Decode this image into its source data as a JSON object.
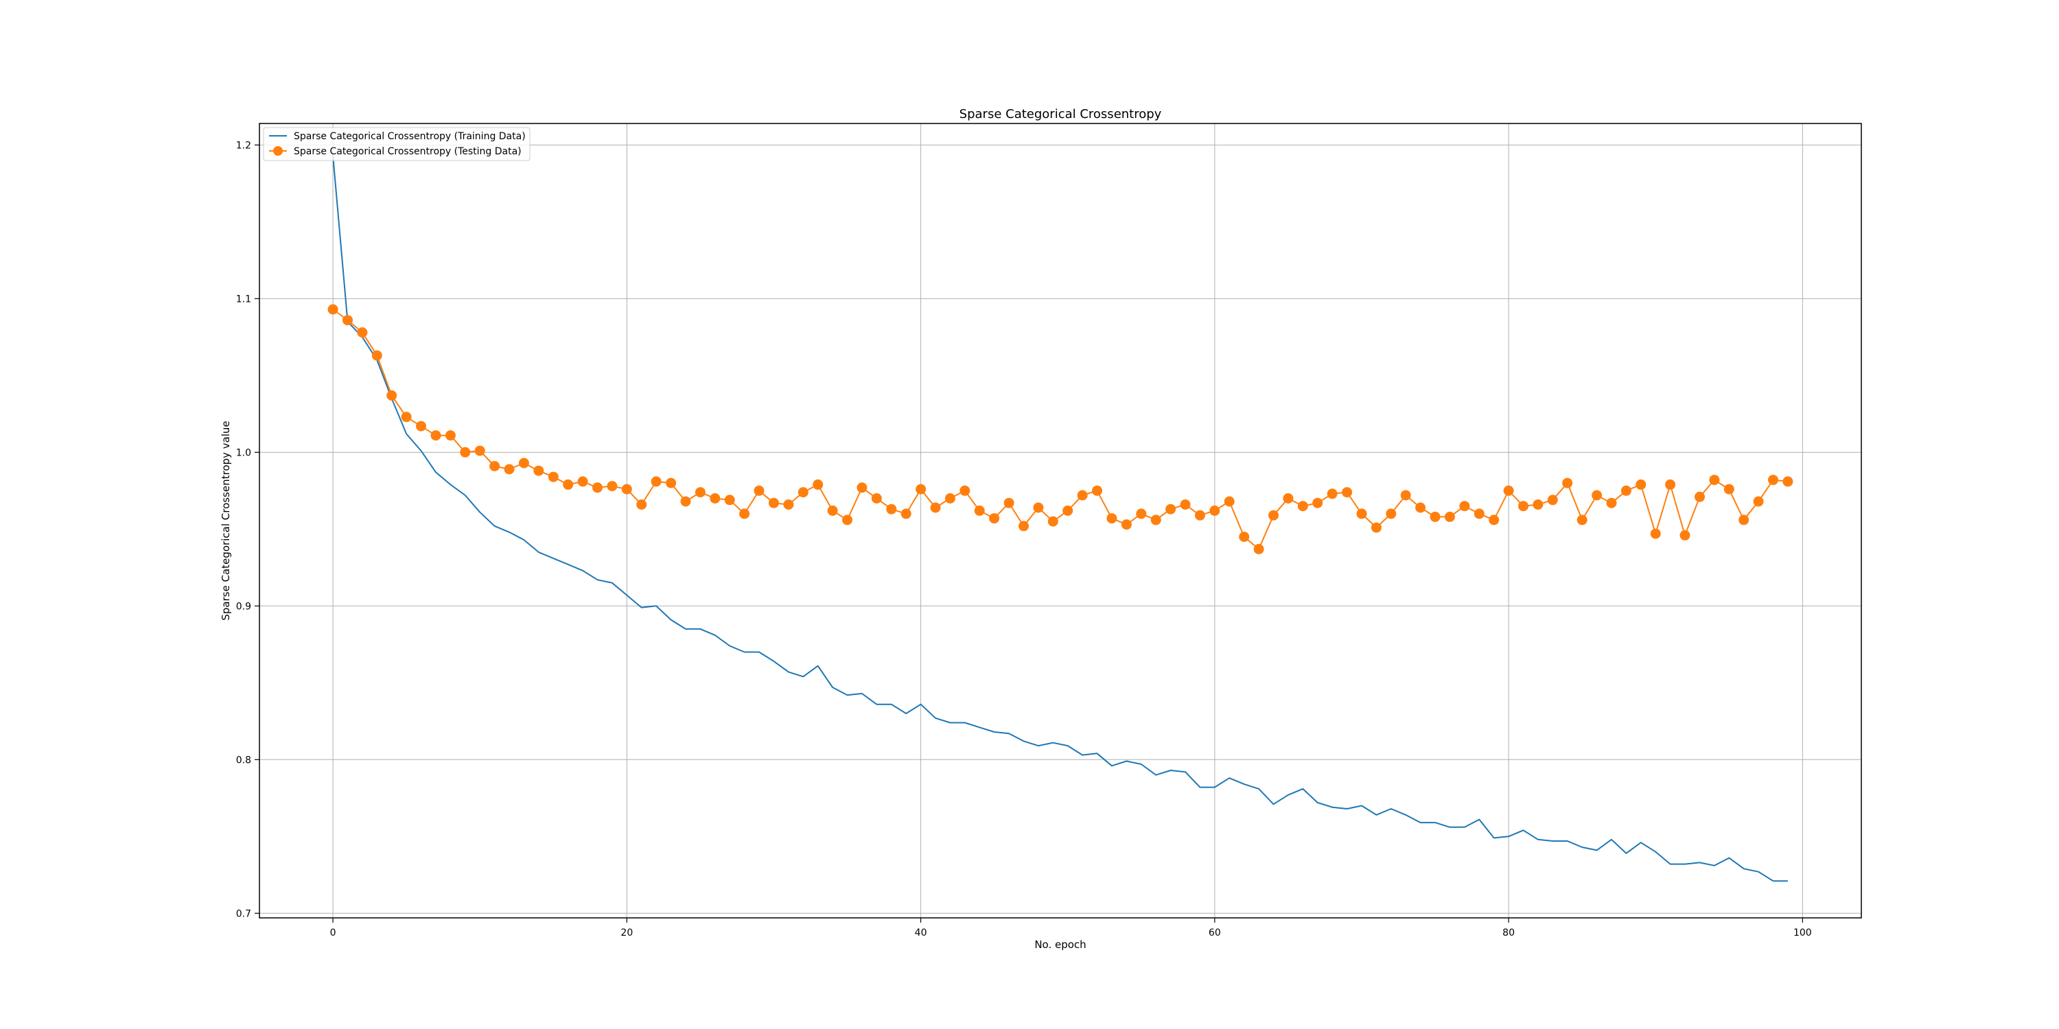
{
  "chart_data": {
    "type": "line",
    "title": "Sparse Categorical Crossentropy",
    "xlabel": "No. epoch",
    "ylabel": "Sparse Categorical Crossentropy value",
    "xlim": [
      -5,
      104
    ],
    "ylim": [
      0.697,
      1.214
    ],
    "grid": true,
    "legend_position": "upper left",
    "xticks": [
      0,
      20,
      40,
      60,
      80,
      100
    ],
    "yticks": [
      0.7,
      0.8,
      0.9,
      1.0,
      1.1,
      1.2
    ],
    "x": [
      0,
      1,
      2,
      3,
      4,
      5,
      6,
      7,
      8,
      9,
      10,
      11,
      12,
      13,
      14,
      15,
      16,
      17,
      18,
      19,
      20,
      21,
      22,
      23,
      24,
      25,
      26,
      27,
      28,
      29,
      30,
      31,
      32,
      33,
      34,
      35,
      36,
      37,
      38,
      39,
      40,
      41,
      42,
      43,
      44,
      45,
      46,
      47,
      48,
      49,
      50,
      51,
      52,
      53,
      54,
      55,
      56,
      57,
      58,
      59,
      60,
      61,
      62,
      63,
      64,
      65,
      66,
      67,
      68,
      69,
      70,
      71,
      72,
      73,
      74,
      75,
      76,
      77,
      78,
      79,
      80,
      81,
      82,
      83,
      84,
      85,
      86,
      87,
      88,
      89,
      90,
      91,
      92,
      93,
      94,
      95,
      96,
      97,
      98,
      99
    ],
    "series": [
      {
        "name": "Sparse Categorical Crossentropy (Training Data)",
        "color": "#1f77b4",
        "marker": "none",
        "values": [
          1.193,
          1.085,
          1.075,
          1.06,
          1.035,
          1.012,
          1.001,
          0.987,
          0.979,
          0.972,
          0.961,
          0.952,
          0.948,
          0.943,
          0.935,
          0.931,
          0.927,
          0.923,
          0.917,
          0.915,
          0.907,
          0.899,
          0.9,
          0.891,
          0.885,
          0.885,
          0.881,
          0.874,
          0.87,
          0.87,
          0.864,
          0.857,
          0.854,
          0.861,
          0.847,
          0.842,
          0.843,
          0.836,
          0.836,
          0.83,
          0.836,
          0.827,
          0.824,
          0.824,
          0.821,
          0.818,
          0.817,
          0.812,
          0.809,
          0.811,
          0.809,
          0.803,
          0.804,
          0.796,
          0.799,
          0.797,
          0.79,
          0.793,
          0.792,
          0.782,
          0.782,
          0.788,
          0.784,
          0.781,
          0.771,
          0.777,
          0.781,
          0.772,
          0.769,
          0.768,
          0.77,
          0.764,
          0.768,
          0.764,
          0.759,
          0.759,
          0.756,
          0.756,
          0.761,
          0.749,
          0.75,
          0.754,
          0.748,
          0.747,
          0.747,
          0.743,
          0.741,
          0.748,
          0.739,
          0.746,
          0.74,
          0.732,
          0.732,
          0.733,
          0.731,
          0.736,
          0.729,
          0.727,
          0.721,
          0.721
        ]
      },
      {
        "name": "Sparse Categorical Crossentropy (Testing Data)",
        "color": "#ff7f0e",
        "marker": "circle",
        "values": [
          1.093,
          1.086,
          1.078,
          1.063,
          1.037,
          1.023,
          1.017,
          1.011,
          1.011,
          1.0,
          1.001,
          0.991,
          0.989,
          0.993,
          0.988,
          0.984,
          0.979,
          0.981,
          0.977,
          0.978,
          0.976,
          0.966,
          0.981,
          0.98,
          0.968,
          0.974,
          0.97,
          0.969,
          0.96,
          0.975,
          0.967,
          0.966,
          0.974,
          0.979,
          0.962,
          0.956,
          0.977,
          0.97,
          0.963,
          0.96,
          0.976,
          0.964,
          0.97,
          0.975,
          0.962,
          0.957,
          0.967,
          0.952,
          0.964,
          0.955,
          0.962,
          0.972,
          0.975,
          0.957,
          0.953,
          0.96,
          0.956,
          0.963,
          0.966,
          0.959,
          0.962,
          0.968,
          0.945,
          0.937,
          0.959,
          0.97,
          0.965,
          0.967,
          0.973,
          0.974,
          0.96,
          0.951,
          0.96,
          0.972,
          0.964,
          0.958,
          0.958,
          0.965,
          0.96,
          0.956,
          0.975,
          0.965,
          0.966,
          0.969,
          0.98,
          0.956,
          0.972,
          0.967,
          0.975,
          0.979,
          0.947,
          0.979,
          0.946,
          0.971,
          0.982,
          0.976,
          0.956,
          0.968,
          0.982,
          0.981
        ]
      }
    ]
  }
}
